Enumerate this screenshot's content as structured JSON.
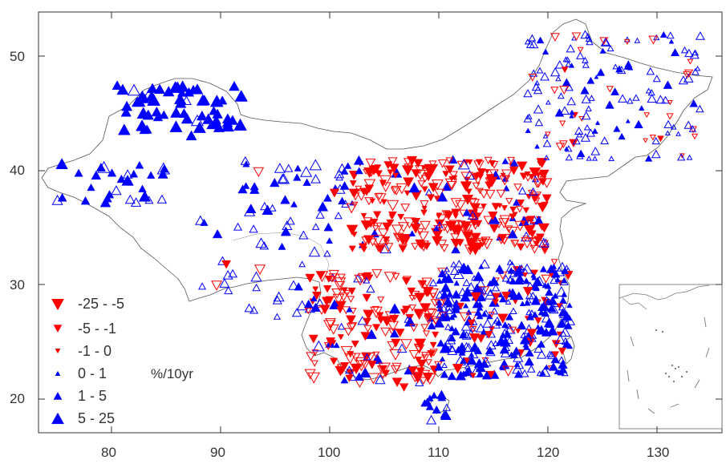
{
  "map": {
    "x_ticks": [
      "80",
      "90",
      "100",
      "110",
      "120",
      "130"
    ],
    "y_ticks": [
      "50",
      "40",
      "30",
      "20"
    ],
    "unit": "%/10yr",
    "colors": {
      "decrease": "#ff0000",
      "increase": "#0000ff",
      "border": "#555555"
    },
    "legend": [
      {
        "label": "-25  -  -5",
        "direction": "down",
        "size": "large"
      },
      {
        "label": "-5  -  -1",
        "direction": "down",
        "size": "medium"
      },
      {
        "label": "-1  -  0",
        "direction": "down",
        "size": "small"
      },
      {
        "label": "0  -  1",
        "direction": "up",
        "size": "small"
      },
      {
        "label": "1  -  5",
        "direction": "up",
        "size": "medium"
      },
      {
        "label": "5  -  25",
        "direction": "up",
        "size": "large"
      }
    ]
  }
}
